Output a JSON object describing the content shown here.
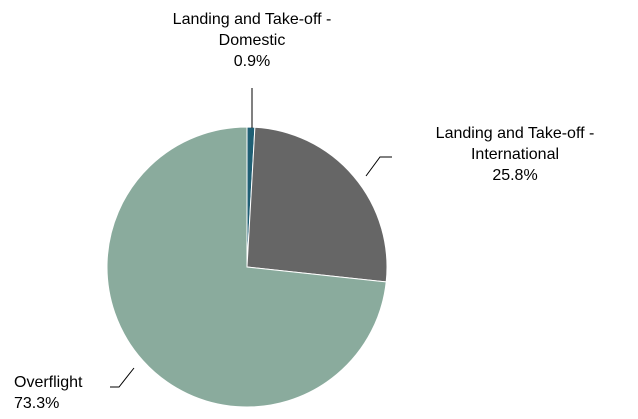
{
  "chart_data": {
    "type": "pie",
    "start_angle_deg": 0,
    "direction": "clockwise",
    "slices": [
      {
        "name": "Landing and Take-off - Domestic",
        "label_lines": [
          "Landing and Take-off -",
          "Domestic"
        ],
        "value": 0.9,
        "value_label": "0.9%",
        "color": "#1f5f74"
      },
      {
        "name": "Landing and Take-off - International",
        "label_lines": [
          "Landing and Take-off -",
          "International"
        ],
        "value": 25.8,
        "value_label": "25.8%",
        "color": "#666666"
      },
      {
        "name": "Overflight",
        "label_lines": [
          "Overflight"
        ],
        "value": 73.3,
        "value_label": "73.3%",
        "color": "#8aab9d"
      }
    ]
  }
}
